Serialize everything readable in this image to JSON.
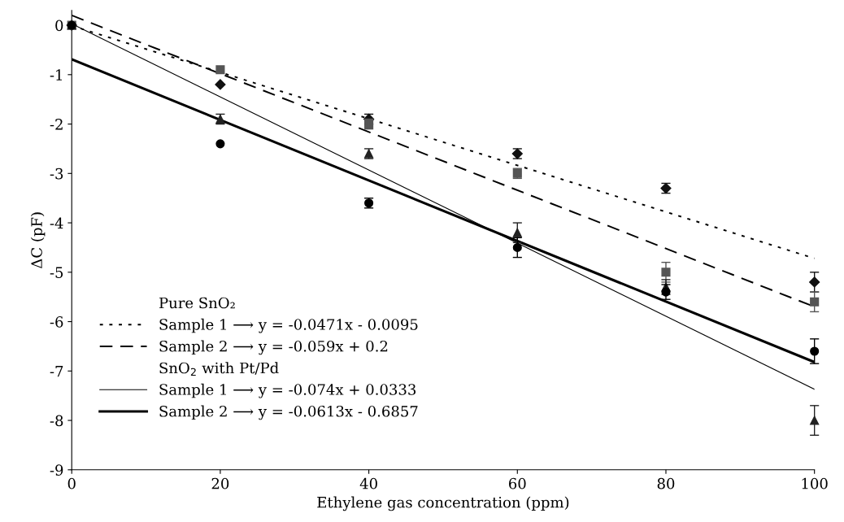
{
  "chart_data": {
    "type": "scatter",
    "xlabel": "Ethylene gas concentration (ppm)",
    "ylabel": "ΔC (pF)",
    "xlim": [
      0,
      100
    ],
    "xticks": [
      0,
      20,
      40,
      60,
      80,
      100
    ],
    "ylim": [
      -9,
      0.3
    ],
    "yticks": [
      -9,
      -8,
      -7,
      -6,
      -5,
      -4,
      -3,
      -2,
      -1,
      0
    ],
    "grid": false,
    "legend": "bottom left",
    "annotations": [
      "Pure SnO₂",
      "SnO$_{2}$ with Pt/Pd"
    ],
    "series": [
      {
        "marker": "diamond",
        "color": "#111111",
        "x": [
          0,
          20,
          40,
          60,
          80,
          100
        ],
        "values": [
          0,
          -1.2,
          -1.9,
          -2.6,
          -3.3,
          -5.2
        ],
        "errors": [
          null,
          null,
          0.1,
          0.1,
          0.1,
          0.2
        ]
      },
      {
        "marker": "square",
        "color": "#555555",
        "x": [
          0,
          20,
          40,
          60,
          80,
          100
        ],
        "values": [
          0,
          -0.9,
          -2.0,
          -3.0,
          -5.0,
          -5.6
        ],
        "errors": [
          null,
          null,
          0.1,
          0.1,
          0.2,
          0.2
        ]
      },
      {
        "marker": "triangle",
        "color": "#222222",
        "x": [
          0,
          20,
          40,
          60,
          80,
          100
        ],
        "values": [
          0,
          -1.9,
          -2.6,
          -4.2,
          -5.3,
          -8.0
        ],
        "errors": [
          null,
          0.1,
          0.1,
          0.2,
          0.15,
          0.3
        ]
      },
      {
        "marker": "circle",
        "color": "#000000",
        "x": [
          0,
          20,
          40,
          60,
          80,
          100
        ],
        "values": [
          0,
          -2.4,
          -3.6,
          -4.5,
          -5.4,
          -6.6
        ],
        "errors": [
          null,
          null,
          0.1,
          0.2,
          0.15,
          0.25
        ]
      },
      {
        "type": "line",
        "name": "Sample 1 ⟶ y = -0.0471x - 0.0095",
        "line_style": "dotted",
        "color": "#000000",
        "x": [
          0,
          100
        ],
        "values": [
          -0.01,
          -4.72
        ]
      },
      {
        "type": "line",
        "name": "Sample 2 ⟶ y = -0.059x + 0.2",
        "line_style": "dashed",
        "color": "#000000",
        "x": [
          0,
          100
        ],
        "values": [
          0.2,
          -5.7
        ]
      },
      {
        "type": "line",
        "name": "Sample 1 ⟶ y = -0.074x + 0.0333",
        "line_style": "solid",
        "color": "#000000",
        "x": [
          0,
          100
        ],
        "values": [
          0.03,
          -7.37
        ]
      },
      {
        "type": "line",
        "name": "Sample 2 ⟶ y = -0.0613x - 0.6857",
        "line_style": "solid",
        "color": "#000000",
        "x": [
          0,
          100
        ],
        "values": [
          -0.69,
          -6.82
        ]
      }
    ]
  }
}
